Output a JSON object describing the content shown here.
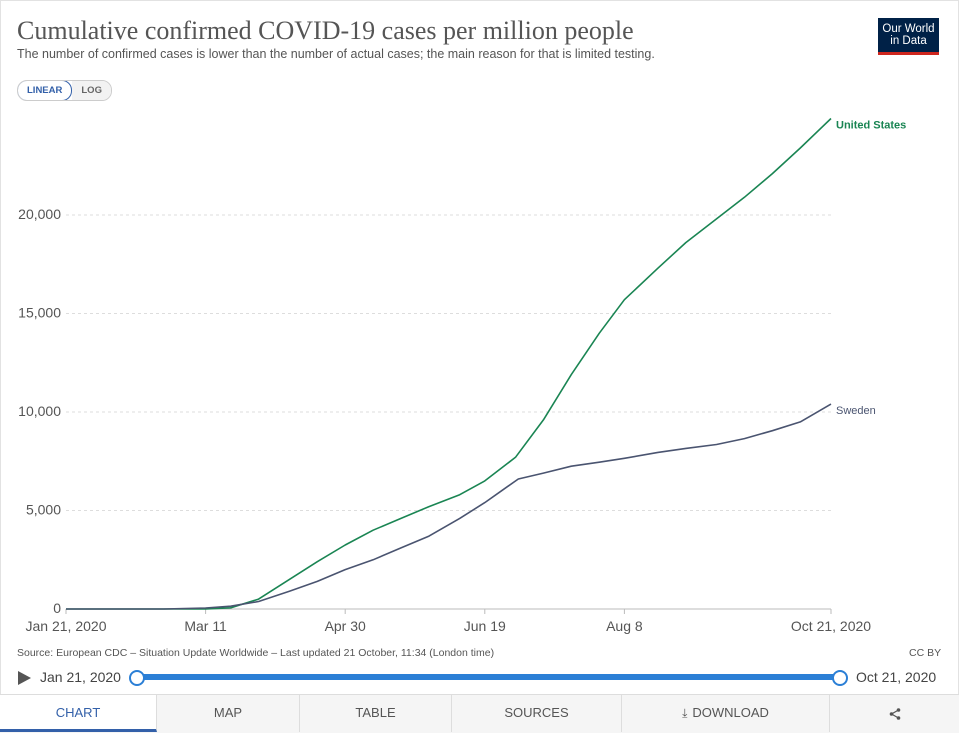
{
  "title": "Cumulative confirmed COVID-19 cases per million people",
  "subtitle": "The number of confirmed cases is lower than the number of actual cases; the main reason for that is limited testing.",
  "logo": {
    "line1": "Our World",
    "line2": "in Data"
  },
  "scale_toggle": {
    "linear": "LINEAR",
    "log": "LOG",
    "selected": "linear"
  },
  "source": "Source: European CDC – Situation Update Worldwide – Last updated 21 October, 11:34 (London time)",
  "license": "CC BY",
  "timeline": {
    "start": "Jan 21, 2020",
    "end": "Oct 21, 2020"
  },
  "tabs": [
    "CHART",
    "MAP",
    "TABLE",
    "SOURCES",
    "DOWNLOAD"
  ],
  "share_icon": "share-icon",
  "colors": {
    "us": "#1a8553",
    "sweden": "#4a5470",
    "accent": "#3360a9",
    "slider": "#2b7fd6"
  },
  "chart_data": {
    "type": "line",
    "xlabel": "",
    "ylabel": "",
    "x_ticks": [
      "Jan 21, 2020",
      "Mar 11",
      "Apr 30",
      "Jun 19",
      "Aug 8",
      "Oct 21, 2020"
    ],
    "y_ticks": [
      0,
      5000,
      10000,
      15000,
      20000
    ],
    "y_tick_labels": [
      "0",
      "5,000",
      "10,000",
      "15,000",
      "20,000"
    ],
    "ylim": [
      0,
      25000
    ],
    "xlim": [
      "2020-01-21",
      "2020-10-21"
    ],
    "grid": "horizontal dashed",
    "series": [
      {
        "name": "United States",
        "x": [
          "2020-01-21",
          "2020-02-20",
          "2020-03-11",
          "2020-03-20",
          "2020-03-30",
          "2020-04-10",
          "2020-04-20",
          "2020-04-30",
          "2020-05-10",
          "2020-05-20",
          "2020-05-30",
          "2020-06-10",
          "2020-06-19",
          "2020-06-30",
          "2020-07-10",
          "2020-07-20",
          "2020-07-30",
          "2020-08-08",
          "2020-08-20",
          "2020-08-30",
          "2020-09-10",
          "2020-09-20",
          "2020-09-30",
          "2020-10-10",
          "2020-10-21"
        ],
        "values": [
          0,
          0,
          3,
          60,
          500,
          1500,
          2400,
          3250,
          4000,
          4600,
          5200,
          5800,
          6500,
          7700,
          9600,
          11900,
          14000,
          15700,
          17300,
          18600,
          19800,
          20900,
          22100,
          23400,
          24900
        ]
      },
      {
        "name": "Sweden",
        "x": [
          "2020-01-21",
          "2020-02-25",
          "2020-03-11",
          "2020-03-20",
          "2020-03-30",
          "2020-04-10",
          "2020-04-20",
          "2020-04-30",
          "2020-05-10",
          "2020-05-20",
          "2020-05-30",
          "2020-06-10",
          "2020-06-19",
          "2020-06-25",
          "2020-07-01",
          "2020-07-10",
          "2020-07-20",
          "2020-07-30",
          "2020-08-08",
          "2020-08-20",
          "2020-08-30",
          "2020-09-10",
          "2020-09-20",
          "2020-09-30",
          "2020-10-10",
          "2020-10-21"
        ],
        "values": [
          0,
          0,
          50,
          140,
          380,
          900,
          1400,
          2000,
          2500,
          3100,
          3700,
          4600,
          5400,
          6000,
          6600,
          6900,
          7250,
          7450,
          7650,
          7950,
          8150,
          8350,
          8650,
          9050,
          9500,
          10400
        ]
      }
    ]
  }
}
